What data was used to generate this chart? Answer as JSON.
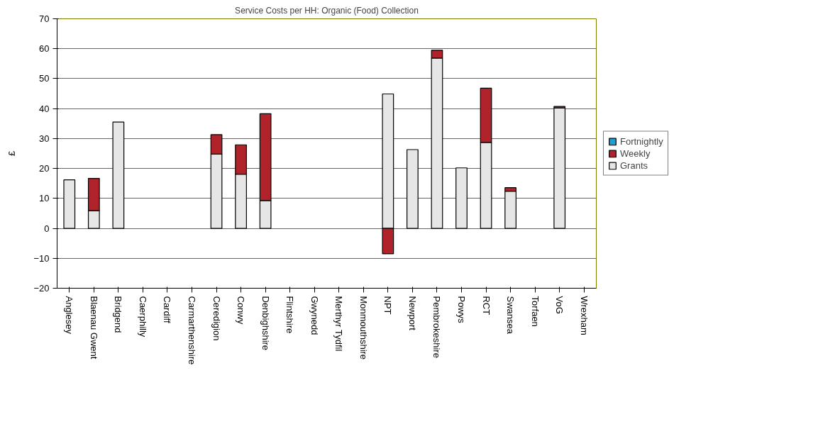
{
  "chart_data": {
    "type": "bar",
    "title": "Service Costs per HH: Organic (Food) Collection",
    "ylabel": "£",
    "categories": [
      "Anglesey",
      "Blaenau Gwent",
      "Bridgend",
      "Caerphilly",
      "Cardiff",
      "Carmarthenshire",
      "Ceredigion",
      "Conwy",
      "Denbighshire",
      "Flintshire",
      "Gwynedd",
      "Merthyr Tydfil",
      "Monmouthshire",
      "NPT",
      "Newport",
      "Pembrokeshire",
      "Powys",
      "RCT",
      "Swansea",
      "Torfaen",
      "VoG",
      "Wrexham"
    ],
    "series": [
      {
        "name": "Grants",
        "color": "#e6e6e6",
        "values": [
          16.2,
          5.9,
          35.5,
          null,
          null,
          null,
          24.8,
          18.1,
          9.3,
          null,
          null,
          null,
          null,
          44.9,
          26.3,
          56.9,
          20.2,
          28.7,
          12.4,
          null,
          40.2,
          null
        ]
      },
      {
        "name": "Weekly",
        "color": "#b0232a",
        "values": [
          null,
          10.8,
          null,
          null,
          null,
          null,
          6.5,
          9.8,
          29.0,
          null,
          null,
          null,
          null,
          -8.5,
          null,
          2.6,
          null,
          18.1,
          1.2,
          null,
          0.5,
          null
        ]
      },
      {
        "name": "Fortnightly",
        "color": "#1f9fd0",
        "values": [
          null,
          null,
          null,
          null,
          null,
          null,
          null,
          null,
          null,
          null,
          null,
          null,
          null,
          null,
          null,
          null,
          null,
          null,
          null,
          null,
          null,
          null
        ]
      }
    ],
    "stacked": true,
    "ylim": [
      -20,
      70
    ],
    "yticks": [
      -20,
      -10,
      0,
      10,
      20,
      30,
      40,
      50,
      60,
      70
    ],
    "grid": "y",
    "legend": "right"
  }
}
